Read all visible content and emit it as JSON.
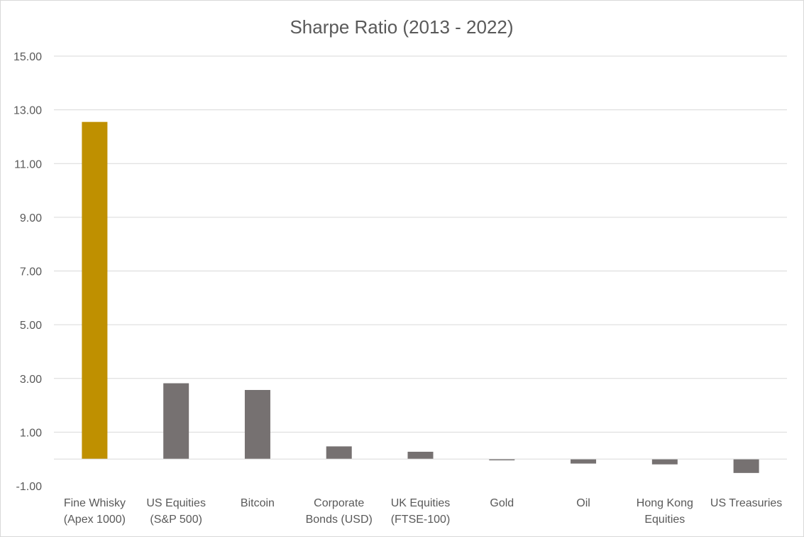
{
  "chart_data": {
    "type": "bar",
    "title": "Sharpe Ratio (2013 - 2022)",
    "xlabel": "",
    "ylabel": "",
    "ylim": [
      -1.0,
      15.0
    ],
    "yticks": [
      "15.00",
      "13.00",
      "11.00",
      "9.00",
      "7.00",
      "5.00",
      "3.00",
      "1.00",
      "-1.00"
    ],
    "ytick_values": [
      15,
      13,
      11,
      9,
      7,
      5,
      3,
      1,
      -1
    ],
    "grid": true,
    "legend": "none",
    "categories": [
      [
        "Fine Whisky",
        "(Apex 1000)"
      ],
      [
        "US Equities",
        "(S&P 500)"
      ],
      [
        "Bitcoin"
      ],
      [
        "Corporate",
        "Bonds (USD)"
      ],
      [
        "UK Equities",
        "(FTSE-100)"
      ],
      [
        "Gold"
      ],
      [
        "Oil"
      ],
      [
        "Hong Kong",
        "Equities"
      ],
      [
        "US Treasuries"
      ]
    ],
    "values": [
      12.55,
      2.82,
      2.57,
      0.47,
      0.27,
      -0.05,
      -0.17,
      -0.2,
      -0.52
    ],
    "colors": [
      "#bf9000",
      "#767171",
      "#767171",
      "#767171",
      "#767171",
      "#767171",
      "#767171",
      "#767171",
      "#767171"
    ]
  }
}
